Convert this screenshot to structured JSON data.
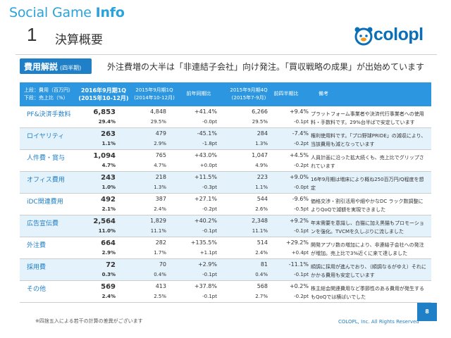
{
  "header": {
    "brand_light": "Social Game ",
    "brand_bold": "Info",
    "section_number": "1",
    "section_title": "決算概要",
    "logo_text": "colopl"
  },
  "badge": {
    "label": "費用解説",
    "sub": "(四半期)"
  },
  "summary": "外注費増の大半は「非連結子会社」向け発注。「買収戦略の成果」が出始めています",
  "columns": {
    "c0a": "上段：費用（百万円）",
    "c0b": "下段：売上比（%）",
    "c1a": "2016年9月期1Q",
    "c1b": "(2015年10-12月)",
    "c2a": "2015年9月期1Q",
    "c2b": "(2014年10-12月)",
    "c3": "前年同期比",
    "c4a": "2015年9月期4Q",
    "c4b": "(2015年7-9月)",
    "c5": "前四半期比",
    "c6": "備考"
  },
  "rows": [
    {
      "label": "PF&決済手数料",
      "cur": "6,853",
      "cur_pct": "29.4%",
      "prev": "4,848",
      "prev_pct": "29.5%",
      "yoy": "+41.4%",
      "yoy_pt": "-0.0pt",
      "q4": "6,266",
      "q4_pct": "29.5%",
      "qoq": "+9.4%",
      "qoq_pt": "-0.1pt",
      "note": "プラットフォーム事業者や決済代行事業者への使用料・手数料です。29%台半ばで安定しています"
    },
    {
      "label": "ロイヤリティ",
      "cur": "263",
      "cur_pct": "1.1%",
      "prev": "479",
      "prev_pct": "2.9%",
      "yoy": "-45.1%",
      "yoy_pt": "-1.8pt",
      "q4": "284",
      "q4_pct": "1.3%",
      "qoq": "-7.4%",
      "qoq_pt": "-0.2pt",
      "note": "権利使用料です。「プロ野球PRIDE」の減収により、当該費用も減となっています"
    },
    {
      "label": "人件費・賞与",
      "cur": "1,094",
      "cur_pct": "4.7%",
      "prev": "765",
      "prev_pct": "4.7%",
      "yoy": "+43.0%",
      "yoy_pt": "+0.0pt",
      "q4": "1,047",
      "q4_pct": "4.9%",
      "qoq": "+4.5%",
      "qoq_pt": "-0.2pt",
      "note": "人員計画に沿った拡大続くも、売上比でグリップされています"
    },
    {
      "label": "オフィス費用",
      "cur": "243",
      "cur_pct": "1.0%",
      "prev": "218",
      "prev_pct": "1.3%",
      "yoy": "+11.5%",
      "yoy_pt": "-0.3pt",
      "q4": "223",
      "q4_pct": "1.1%",
      "qoq": "+9.0%",
      "qoq_pt": "-0.0pt",
      "note": "16年9月期は増床により概ね250百万円/Q程度を想定"
    },
    {
      "label": "iDC関連費用",
      "cur": "492",
      "cur_pct": "2.1%",
      "prev": "387",
      "prev_pct": "2.4%",
      "yoy": "+27.1%",
      "yoy_pt": "-0.2pt",
      "q4": "544",
      "q4_pct": "2.6%",
      "qoq": "-9.6%",
      "qoq_pt": "-0.5pt",
      "note": "価格交渉・割引活用や細やかなDC ラック数調整によりQoQで減額を実現できました"
    },
    {
      "label": "広告宣伝費",
      "cur": "2,564",
      "cur_pct": "11.0%",
      "prev": "1,829",
      "prev_pct": "11.1%",
      "yoy": "+40.2%",
      "yoy_pt": "-0.1pt",
      "q4": "2,348",
      "q4_pct": "11.1%",
      "qoq": "+9.2%",
      "qoq_pt": "-0.1pt",
      "note": "年末需要を意識し、白猫に加え黒猫もプロモーションを強化。TVCMを久しぶりに流しました"
    },
    {
      "label": "外注費",
      "cur": "664",
      "cur_pct": "2.9%",
      "prev": "282",
      "prev_pct": "1.7%",
      "yoy": "+135.5%",
      "yoy_pt": "+1.1pt",
      "q4": "514",
      "q4_pct": "2.4%",
      "qoq": "+29.2%",
      "qoq_pt": "+0.4pt",
      "note": "開発アプリ数の増加により、非連結子会社への発注が増加。売上比で3%近くに来て達しました"
    },
    {
      "label": "採用費",
      "cur": "72",
      "cur_pct": "0.3%",
      "prev": "70",
      "prev_pct": "0.4%",
      "yoy": "+2.9%",
      "yoy_pt": "-0.1pt",
      "q4": "81",
      "q4_pct": "0.4%",
      "qoq": "-11.1%",
      "qoq_pt": "-0.1pt",
      "note": "順調に採用が進んでおり、（順調なるがゆえ）それにかかる費用も安定しています"
    },
    {
      "label": "その他",
      "cur": "569",
      "cur_pct": "2.4%",
      "prev": "413",
      "prev_pct": "2.5%",
      "yoy": "+37.8%",
      "yoy_pt": "-0.1pt",
      "q4": "568",
      "q4_pct": "2.7%",
      "qoq": "+0.2%",
      "qoq_pt": "-0.2pt",
      "note": "株主総会関連費用など季節性のある費用が発生するもQoQでは横ばいでした"
    }
  ],
  "footnote": "※四捨五入による若干の計算の差異がございます",
  "copyright": "COLOPL, Inc. All Rights Reserved",
  "page_number": "8",
  "colors": {
    "accent": "#1f7fc7",
    "header_bg": "#2c97e0",
    "row_alt": "#e4f2fb"
  }
}
